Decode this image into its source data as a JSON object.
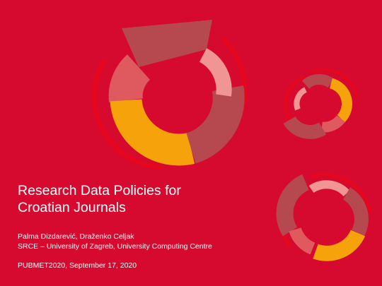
{
  "slide": {
    "title_lines": [
      "Research Data Policies for",
      "Croatian Journals"
    ],
    "authors": "Palma Dizdarević, Draženko Celjak",
    "affiliation": "SRCE – University of Zagreb, University Computing Centre",
    "event": "PUBMET2020, September 17, 2020"
  },
  "colors": {
    "background": "#d50a2e",
    "ring_dark": "#b5494f",
    "ring_salmon": "#de5a5e",
    "ring_pink": "#f19494",
    "ring_yellow": "#f6a30b",
    "ring_red": "#e6061e"
  },
  "decorations": [
    "donut-ring-large",
    "donut-ring-small",
    "donut-ring-medium"
  ]
}
